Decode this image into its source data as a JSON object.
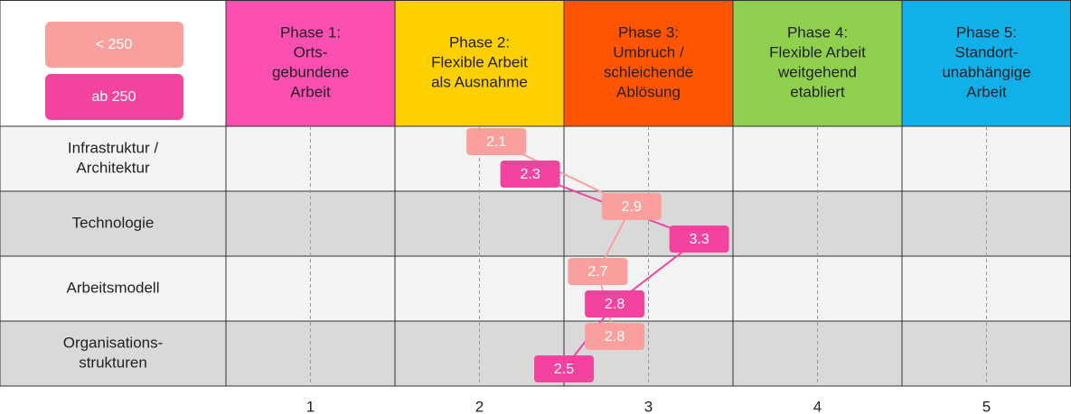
{
  "chart_data": {
    "type": "line",
    "phases": [
      [
        "Phase 1:",
        "Orts-",
        "gebundene",
        "Arbeit"
      ],
      [
        "Phase 2:",
        "Flexible Arbeit",
        "als Ausnahme"
      ],
      [
        "Phase 3:",
        "Umbruch /",
        "schleichende",
        "Ablösung"
      ],
      [
        "Phase 4:",
        "Flexible Arbeit",
        "weitgehend",
        "etabliert"
      ],
      [
        "Phase 5:",
        "Standort-",
        "unabhängige",
        "Arbeit"
      ]
    ],
    "phase_colors": [
      "#fb4fb2",
      "#ffd000",
      "#ff5400",
      "#8fd14f",
      "#12b0ea"
    ],
    "categories": [
      [
        "Infrastruktur /",
        "Architektur"
      ],
      [
        "Technologie"
      ],
      [
        "Arbeitsmodell"
      ],
      [
        "Organisations-",
        "strukturen"
      ]
    ],
    "series": [
      {
        "name": "< 250",
        "color": "#f9a09e",
        "values": [
          2.1,
          2.9,
          2.7,
          2.8
        ]
      },
      {
        "name": "ab 250",
        "color": "#f2449f",
        "values": [
          2.3,
          3.3,
          2.8,
          2.5
        ]
      }
    ],
    "xlim": [
      0.5,
      5.5
    ],
    "xticks": [
      1,
      2,
      3,
      4,
      5
    ],
    "grid": true
  }
}
